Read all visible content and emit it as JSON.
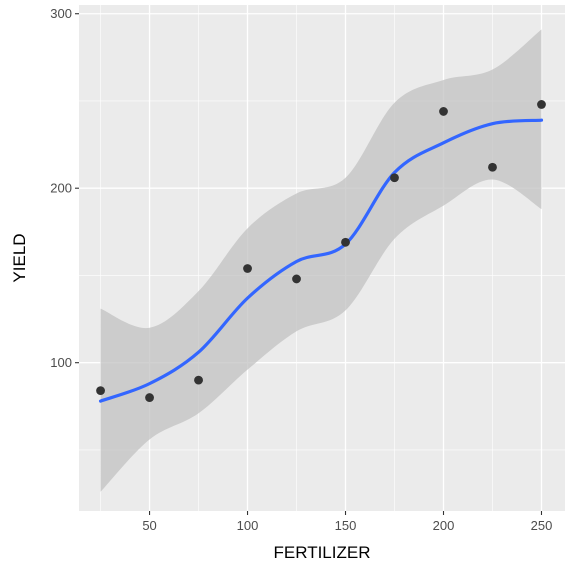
{
  "chart_data": {
    "type": "scatter",
    "xlabel": "FERTILIZER",
    "ylabel": "YIELD",
    "xlim": [
      14,
      262
    ],
    "ylim": [
      15,
      305
    ],
    "x_ticks": [
      50,
      100,
      150,
      200,
      250
    ],
    "y_ticks": [
      100,
      200,
      300
    ],
    "x_tick_labels": [
      "50",
      "100",
      "150",
      "200",
      "250"
    ],
    "y_tick_labels": [
      "100",
      "200",
      "300"
    ],
    "grid": true,
    "legend": "none",
    "points": {
      "x": [
        25,
        50,
        75,
        100,
        125,
        150,
        175,
        200,
        225,
        250
      ],
      "y": [
        84,
        80,
        90,
        154,
        148,
        169,
        206,
        244,
        212,
        248
      ]
    },
    "smooth": {
      "x": [
        25,
        50,
        75,
        100,
        125,
        150,
        175,
        200,
        225,
        250
      ],
      "y": [
        78,
        88,
        106,
        137,
        158,
        168,
        209,
        226,
        237,
        239
      ]
    },
    "confidence_band": {
      "x": [
        25,
        50,
        75,
        100,
        125,
        150,
        175,
        200,
        225,
        250
      ],
      "lower": [
        26,
        56,
        71,
        96,
        118,
        130,
        171,
        190,
        205,
        188
      ],
      "upper": [
        131,
        120,
        141,
        177,
        197,
        206,
        249,
        262,
        268,
        291
      ]
    },
    "colors": {
      "panel": "#ebebeb",
      "grid": "#ffffff",
      "points": "#333333",
      "smooth": "#3366ff",
      "band": "#c2c2c2"
    }
  }
}
